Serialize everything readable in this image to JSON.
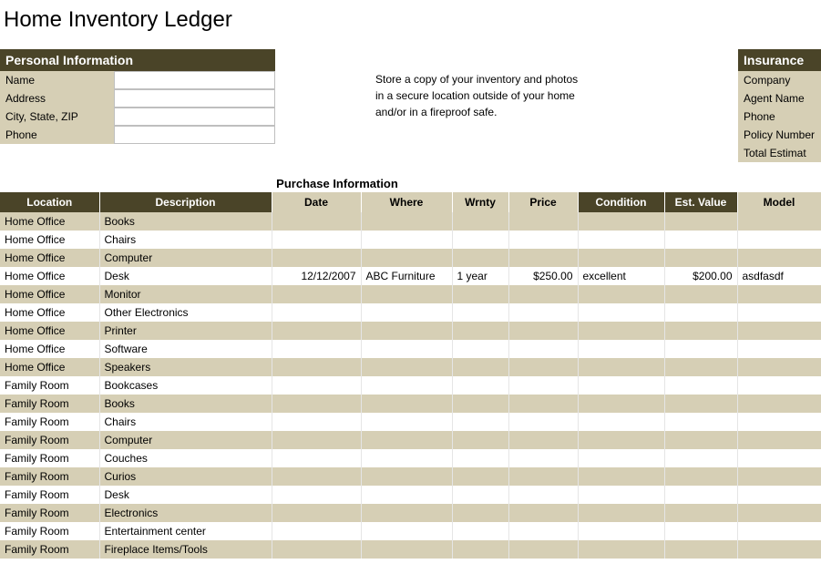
{
  "title": "Home Inventory Ledger",
  "personal": {
    "header": "Personal Information",
    "fields": [
      {
        "label": "Name",
        "value": ""
      },
      {
        "label": "Address",
        "value": ""
      },
      {
        "label": "City, State, ZIP",
        "value": ""
      },
      {
        "label": "Phone",
        "value": ""
      }
    ]
  },
  "note": {
    "line1": "Store a copy of your inventory and photos",
    "line2": "in a secure location outside of your home",
    "line3": "and/or in a fireproof safe."
  },
  "insurance": {
    "header": "Insurance",
    "fields": [
      "Company",
      "Agent Name",
      "Phone",
      "Policy Number",
      "Total Estimat"
    ]
  },
  "purchase_title": "Purchase Information",
  "columns": {
    "main": [
      "Location",
      "Description"
    ],
    "sub": [
      "Date",
      "Where",
      "Wrnty",
      "Price"
    ],
    "main2": [
      "Condition",
      "Est. Value"
    ],
    "sub2": [
      "Model"
    ]
  },
  "rows": [
    {
      "location": "Home Office",
      "description": "Books",
      "date": "",
      "where": "",
      "wrnty": "",
      "price": "",
      "condition": "",
      "estvalue": "",
      "model": ""
    },
    {
      "location": "Home Office",
      "description": "Chairs",
      "date": "",
      "where": "",
      "wrnty": "",
      "price": "",
      "condition": "",
      "estvalue": "",
      "model": ""
    },
    {
      "location": "Home Office",
      "description": "Computer",
      "date": "",
      "where": "",
      "wrnty": "",
      "price": "",
      "condition": "",
      "estvalue": "",
      "model": ""
    },
    {
      "location": "Home Office",
      "description": "Desk",
      "date": "12/12/2007",
      "where": "ABC Furniture",
      "wrnty": "1 year",
      "price": "$250.00",
      "condition": "excellent",
      "estvalue": "$200.00",
      "model": "asdfasdf"
    },
    {
      "location": "Home Office",
      "description": "Monitor",
      "date": "",
      "where": "",
      "wrnty": "",
      "price": "",
      "condition": "",
      "estvalue": "",
      "model": ""
    },
    {
      "location": "Home Office",
      "description": "Other Electronics",
      "date": "",
      "where": "",
      "wrnty": "",
      "price": "",
      "condition": "",
      "estvalue": "",
      "model": ""
    },
    {
      "location": "Home Office",
      "description": "Printer",
      "date": "",
      "where": "",
      "wrnty": "",
      "price": "",
      "condition": "",
      "estvalue": "",
      "model": ""
    },
    {
      "location": "Home Office",
      "description": "Software",
      "date": "",
      "where": "",
      "wrnty": "",
      "price": "",
      "condition": "",
      "estvalue": "",
      "model": ""
    },
    {
      "location": "Home Office",
      "description": "Speakers",
      "date": "",
      "where": "",
      "wrnty": "",
      "price": "",
      "condition": "",
      "estvalue": "",
      "model": ""
    },
    {
      "location": "Family Room",
      "description": "Bookcases",
      "date": "",
      "where": "",
      "wrnty": "",
      "price": "",
      "condition": "",
      "estvalue": "",
      "model": ""
    },
    {
      "location": "Family Room",
      "description": "Books",
      "date": "",
      "where": "",
      "wrnty": "",
      "price": "",
      "condition": "",
      "estvalue": "",
      "model": ""
    },
    {
      "location": "Family Room",
      "description": "Chairs",
      "date": "",
      "where": "",
      "wrnty": "",
      "price": "",
      "condition": "",
      "estvalue": "",
      "model": ""
    },
    {
      "location": "Family Room",
      "description": "Computer",
      "date": "",
      "where": "",
      "wrnty": "",
      "price": "",
      "condition": "",
      "estvalue": "",
      "model": ""
    },
    {
      "location": "Family Room",
      "description": "Couches",
      "date": "",
      "where": "",
      "wrnty": "",
      "price": "",
      "condition": "",
      "estvalue": "",
      "model": ""
    },
    {
      "location": "Family Room",
      "description": "Curios",
      "date": "",
      "where": "",
      "wrnty": "",
      "price": "",
      "condition": "",
      "estvalue": "",
      "model": ""
    },
    {
      "location": "Family Room",
      "description": "Desk",
      "date": "",
      "where": "",
      "wrnty": "",
      "price": "",
      "condition": "",
      "estvalue": "",
      "model": ""
    },
    {
      "location": "Family Room",
      "description": "Electronics",
      "date": "",
      "where": "",
      "wrnty": "",
      "price": "",
      "condition": "",
      "estvalue": "",
      "model": ""
    },
    {
      "location": "Family Room",
      "description": "Entertainment center",
      "date": "",
      "where": "",
      "wrnty": "",
      "price": "",
      "condition": "",
      "estvalue": "",
      "model": ""
    },
    {
      "location": "Family Room",
      "description": "Fireplace Items/Tools",
      "date": "",
      "where": "",
      "wrnty": "",
      "price": "",
      "condition": "",
      "estvalue": "",
      "model": ""
    }
  ],
  "colors": {
    "header_bg": "#4a4428",
    "header_fg": "#ffffff",
    "band": "#d6cfb5",
    "bg": "#ffffff"
  }
}
